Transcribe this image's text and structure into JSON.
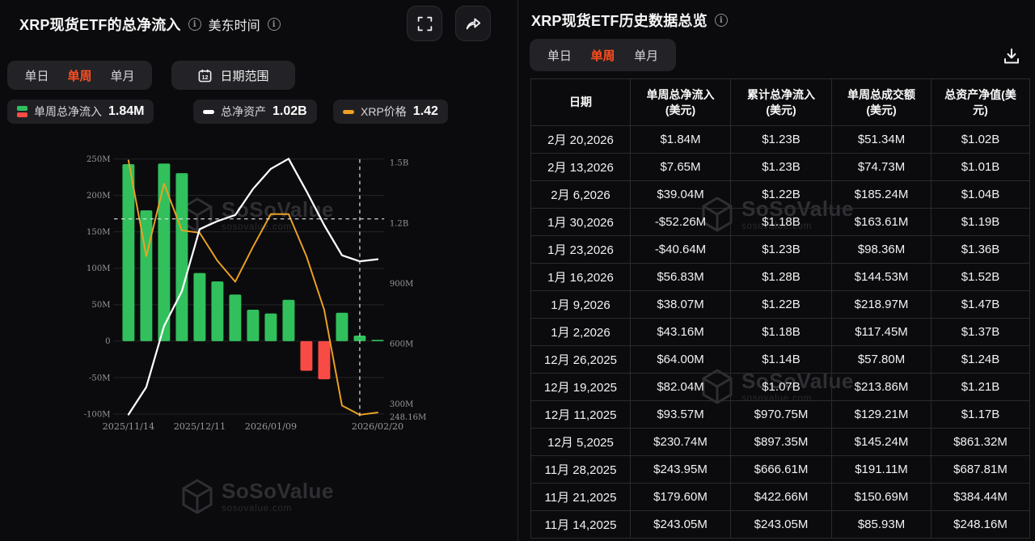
{
  "left_panel": {
    "title": "XRP现货ETF的总净流入",
    "timezone_label": "美东时间",
    "tabs": {
      "daily": "单日",
      "weekly": "单周",
      "monthly": "单月",
      "selected": "单周"
    },
    "date_range_button": "日期范围",
    "calendar_icon_day": "12",
    "legend": [
      {
        "label": "单周总净流入",
        "value": "1.84M",
        "marker_colors": [
          "#31c05c",
          "#f94b45"
        ]
      },
      {
        "label": "总净资产",
        "value": "1.02B",
        "marker_color": "#ffffff"
      },
      {
        "label": "XRP价格",
        "value": "1.42",
        "marker_color": "#eda222"
      }
    ]
  },
  "right_panel": {
    "title": "XRP现货ETF历史数据总览",
    "tabs": {
      "daily": "单日",
      "weekly": "单周",
      "monthly": "单月",
      "selected": "单周"
    },
    "table": {
      "headers": [
        "日期",
        "单周总净流入\n(美元)",
        "累计总净流入\n(美元)",
        "单周总成交额\n(美元)",
        "总资产净值(美\n元)"
      ],
      "rows": [
        {
          "date": "2月 20,2026",
          "weekly_inflow": "$1.84M",
          "cumulative_inflow": "$1.23B",
          "volume": "$51.34M",
          "nav": "$1.02B"
        },
        {
          "date": "2月 13,2026",
          "weekly_inflow": "$7.65M",
          "cumulative_inflow": "$1.23B",
          "volume": "$74.73M",
          "nav": "$1.01B"
        },
        {
          "date": "2月 6,2026",
          "weekly_inflow": "$39.04M",
          "cumulative_inflow": "$1.22B",
          "volume": "$185.24M",
          "nav": "$1.04B"
        },
        {
          "date": "1月 30,2026",
          "weekly_inflow": "-$52.26M",
          "cumulative_inflow": "$1.18B",
          "volume": "$163.61M",
          "nav": "$1.19B"
        },
        {
          "date": "1月 23,2026",
          "weekly_inflow": "-$40.64M",
          "cumulative_inflow": "$1.23B",
          "volume": "$98.36M",
          "nav": "$1.36B"
        },
        {
          "date": "1月 16,2026",
          "weekly_inflow": "$56.83M",
          "cumulative_inflow": "$1.28B",
          "volume": "$144.53M",
          "nav": "$1.52B"
        },
        {
          "date": "1月 9,2026",
          "weekly_inflow": "$38.07M",
          "cumulative_inflow": "$1.22B",
          "volume": "$218.97M",
          "nav": "$1.47B"
        },
        {
          "date": "1月 2,2026",
          "weekly_inflow": "$43.16M",
          "cumulative_inflow": "$1.18B",
          "volume": "$117.45M",
          "nav": "$1.37B"
        },
        {
          "date": "12月 26,2025",
          "weekly_inflow": "$64.00M",
          "cumulative_inflow": "$1.14B",
          "volume": "$57.80M",
          "nav": "$1.24B"
        },
        {
          "date": "12月 19,2025",
          "weekly_inflow": "$82.04M",
          "cumulative_inflow": "$1.07B",
          "volume": "$213.86M",
          "nav": "$1.21B"
        },
        {
          "date": "12月 11,2025",
          "weekly_inflow": "$93.57M",
          "cumulative_inflow": "$970.75M",
          "volume": "$129.21M",
          "nav": "$1.17B"
        },
        {
          "date": "12月 5,2025",
          "weekly_inflow": "$230.74M",
          "cumulative_inflow": "$897.35M",
          "volume": "$145.24M",
          "nav": "$861.32M"
        },
        {
          "date": "11月 28,2025",
          "weekly_inflow": "$243.95M",
          "cumulative_inflow": "$666.61M",
          "volume": "$191.11M",
          "nav": "$687.81M"
        },
        {
          "date": "11月 21,2025",
          "weekly_inflow": "$179.60M",
          "cumulative_inflow": "$422.66M",
          "volume": "$150.69M",
          "nav": "$384.44M"
        },
        {
          "date": "11月 14,2025",
          "weekly_inflow": "$243.05M",
          "cumulative_inflow": "$243.05M",
          "volume": "$85.93M",
          "nav": "$248.16M"
        }
      ]
    }
  },
  "watermark": {
    "name": "SoSoValue",
    "domain": "sosovalue.com"
  },
  "colors": {
    "accent_orange": "#ff4d1f",
    "bar_green": "#31c05c",
    "bar_red": "#f94b45",
    "line_white": "#ffffff",
    "line_orange": "#eda222",
    "text_green": "#2fbe5b",
    "text_red": "#f5473f"
  },
  "chart_data": {
    "type": "bar",
    "subtype": "combo-bar-line",
    "categories": [
      "2025/11/14",
      "2025/11/21",
      "2025/11/28",
      "2025/12/05",
      "2025/12/11",
      "2025/12/19",
      "2025/12/26",
      "2026/01/02",
      "2026/01/09",
      "2026/01/16",
      "2026/01/23",
      "2026/01/30",
      "2026/02/06",
      "2026/02/13",
      "2026/02/20"
    ],
    "series": [
      {
        "name": "单周总净流入",
        "type": "bar",
        "unit": "USD millions",
        "values": [
          243.05,
          179.6,
          243.95,
          230.74,
          93.57,
          82.04,
          64.0,
          43.16,
          38.07,
          56.83,
          -40.64,
          -52.26,
          39.04,
          7.65,
          1.84
        ]
      },
      {
        "name": "总净资产",
        "type": "line",
        "unit": "USD millions",
        "values": [
          248.16,
          384.44,
          687.81,
          861.32,
          1170,
          1210,
          1240,
          1370,
          1470,
          1520,
          1360,
          1190,
          1040,
          1010,
          1020
        ]
      },
      {
        "name": "XRP价格",
        "type": "line",
        "unit": "USD (hidden axis, estimated)",
        "values": [
          2.5,
          2.09,
          2.4,
          2.2,
          2.19,
          2.07,
          1.98,
          2.13,
          2.27,
          2.27,
          2.09,
          1.86,
          1.45,
          1.41,
          1.42
        ]
      }
    ],
    "left_axis": {
      "ticks": [
        {
          "label": "250M",
          "value": 250
        },
        {
          "label": "200M",
          "value": 200
        },
        {
          "label": "150M",
          "value": 150
        },
        {
          "label": "100M",
          "value": 100
        },
        {
          "label": "50M",
          "value": 50
        },
        {
          "label": "0",
          "value": 0
        },
        {
          "label": "-50M",
          "value": -50
        },
        {
          "label": "-100M",
          "value": -100
        }
      ]
    },
    "right_axis": {
      "ticks": [
        {
          "label": "1.5B",
          "value": 1500
        },
        {
          "label": "1.2B",
          "value": 1200
        },
        {
          "label": "900M",
          "value": 900
        },
        {
          "label": "600M",
          "value": 600
        },
        {
          "label": "300M",
          "value": 300
        },
        {
          "label": "248.16M",
          "value": 248.16,
          "dy": 4
        }
      ]
    },
    "x_axis": {
      "ticks": [
        {
          "label": "2025/11/14",
          "index": 0
        },
        {
          "label": "2025/12/11",
          "index": 4
        },
        {
          "label": "2026/01/09",
          "index": 8
        },
        {
          "label": "2026/02/20",
          "index": 14
        }
      ]
    },
    "crosshair": {
      "x_category": "2026/02/13",
      "x_index": 13,
      "right_axis_value_m": 1221
    },
    "grid": true,
    "legend_position": "top-left-chips"
  }
}
